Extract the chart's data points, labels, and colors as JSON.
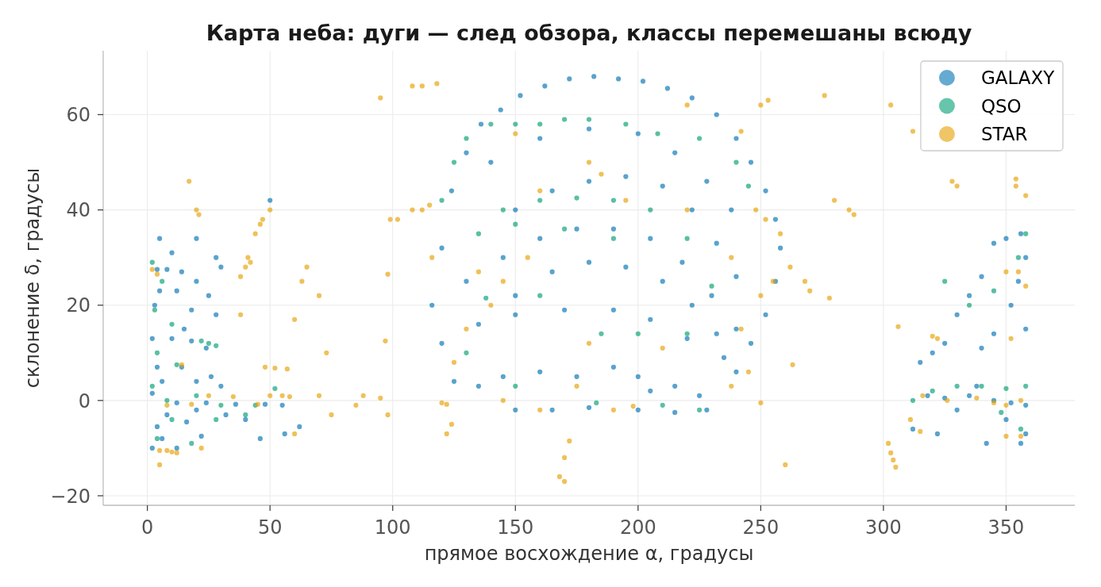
{
  "chart_data": {
    "type": "scatter",
    "title": "Карта неба: дуги — след обзора, классы перемешаны всюду",
    "xlabel": "прямое восхождение α, градусы",
    "ylabel": "склонение δ, градусы",
    "xlim": [
      -18,
      378
    ],
    "ylim": [
      -22,
      73.4
    ],
    "xticks": [
      0,
      50,
      100,
      150,
      200,
      250,
      300,
      350
    ],
    "yticks": [
      {
        "value": -20,
        "label": "−20"
      },
      0,
      20,
      40,
      60
    ],
    "grid": true,
    "legend": "top right",
    "marker": "circle",
    "series": [
      {
        "name": "GALAXY",
        "color": "#0072b2",
        "x": [
          4,
          8,
          14,
          20,
          5,
          12,
          25,
          3,
          18,
          28,
          2,
          10,
          18,
          24,
          4,
          14,
          6,
          20,
          30,
          2,
          12,
          24,
          36,
          48,
          55,
          8,
          20,
          32,
          4,
          16,
          40,
          6,
          22,
          46,
          2,
          12,
          10,
          20,
          28,
          50,
          56,
          62,
          5,
          30,
          15,
          26,
          116,
          120,
          124,
          130,
          136,
          144,
          152,
          162,
          172,
          182,
          192,
          202,
          212,
          222,
          232,
          240,
          246,
          252,
          256,
          258,
          256,
          252,
          246,
          240,
          150,
          165,
          180,
          195,
          210,
          222,
          232,
          240,
          130,
          145,
          160,
          175,
          190,
          205,
          218,
          230,
          240,
          150,
          165,
          180,
          195,
          210,
          222,
          232,
          120,
          135,
          150,
          170,
          190,
          205,
          220,
          235,
          140,
          160,
          180,
          200,
          215,
          228,
          238,
          125,
          135,
          145,
          160,
          175,
          190,
          200,
          205,
          215,
          225,
          150,
          165,
          180,
          200,
          215,
          228,
          315,
          320,
          325,
          330,
          335,
          340,
          345,
          350,
          356,
          358,
          355,
          352,
          358,
          345,
          340,
          318,
          325,
          335,
          345,
          352,
          358,
          330,
          350,
          358,
          312,
          322,
          342,
          356,
          338
        ],
        "values": [
          27.5,
          27.5,
          27,
          25,
          23,
          23,
          22,
          20,
          19,
          18,
          13,
          13,
          12.5,
          11,
          7,
          7,
          4,
          4,
          3,
          1.5,
          -0.5,
          -0.5,
          -0.8,
          -0.8,
          -1,
          -3,
          -2,
          -3,
          -5.5,
          -4.5,
          -4,
          -8,
          -7.5,
          -8,
          -10,
          -10,
          31,
          34,
          30,
          42,
          -7,
          -5.5,
          34,
          28,
          15,
          5,
          20,
          32,
          44,
          52,
          58,
          61,
          64,
          66,
          67.5,
          68,
          67.5,
          67,
          65.5,
          63.5,
          60,
          55,
          50,
          44,
          38,
          32,
          25,
          18,
          12,
          6,
          40,
          44,
          46,
          47,
          45,
          40,
          33,
          26,
          25,
          30,
          34,
          36,
          36,
          34,
          29,
          22,
          15,
          22,
          27,
          29,
          28,
          25,
          20,
          14,
          12,
          16,
          18,
          19,
          19,
          17,
          13,
          9,
          50,
          55,
          57,
          56,
          52,
          46,
          40,
          4,
          3,
          5,
          6,
          5,
          7,
          5,
          2,
          3,
          1,
          -2,
          -2,
          -1.5,
          -2,
          -2.5,
          -2,
          8,
          10,
          12,
          18,
          22,
          26,
          33,
          34,
          35,
          30,
          25,
          20,
          15,
          14,
          11,
          1,
          0.5,
          1,
          0,
          -0.5,
          -1,
          -2,
          -4,
          -7,
          -6,
          -7,
          -9,
          -9,
          3
        ]
      },
      {
        "name": "QSO",
        "color": "#009e73",
        "x": [
          2,
          6,
          3,
          10,
          25,
          28,
          22,
          4,
          12,
          2,
          8,
          20,
          30,
          44,
          10,
          28,
          4,
          18,
          40,
          52,
          120,
          125,
          130,
          140,
          150,
          160,
          170,
          180,
          195,
          208,
          225,
          240,
          145,
          160,
          175,
          190,
          205,
          220,
          135,
          150,
          170,
          190,
          230,
          138,
          160,
          185,
          200,
          220,
          150,
          183,
          210,
          225,
          130,
          245,
          320,
          330,
          340,
          350,
          358,
          335,
          345,
          355,
          358,
          325,
          312,
          348,
          356
        ],
        "values": [
          29,
          25,
          19,
          16,
          12,
          11.5,
          12.5,
          10,
          7.5,
          3,
          0,
          1,
          -1,
          -1,
          -4,
          -4,
          -8,
          -9,
          -3,
          2.5,
          42,
          50,
          55,
          58,
          58,
          58,
          59,
          59,
          58,
          56,
          55,
          50,
          40,
          42,
          42.5,
          42,
          40,
          34,
          35,
          37,
          36,
          34,
          24,
          21.5,
          22,
          14,
          14,
          14,
          3,
          -0.5,
          -1,
          -2,
          10,
          45,
          2,
          3,
          3,
          2.5,
          3,
          20,
          23,
          30,
          35,
          25,
          0,
          -2.5,
          -6
        ]
      },
      {
        "name": "STAR",
        "color": "#e69f00",
        "x": [
          2,
          4,
          5,
          8,
          10,
          12,
          5,
          22,
          18,
          25,
          35,
          50,
          55,
          58,
          45,
          8,
          14,
          17,
          20,
          21,
          38,
          40,
          41,
          42,
          44,
          46,
          47,
          50,
          38,
          48,
          52,
          57,
          60,
          65,
          63,
          60,
          70,
          73,
          75,
          70,
          85,
          88,
          95,
          98,
          95,
          108,
          112,
          118,
          98,
          99,
          102,
          97,
          108,
          112,
          115,
          116,
          120,
          122,
          124,
          122,
          125,
          130,
          140,
          145,
          155,
          135,
          145,
          170,
          168,
          170,
          172,
          160,
          190,
          198,
          175,
          180,
          210,
          185,
          180,
          195,
          220,
          242,
          250,
          253,
          248,
          252,
          258,
          255,
          250,
          238,
          242,
          245,
          238,
          220,
          160,
          150,
          262,
          263,
          268,
          270,
          276,
          280,
          286,
          288,
          278,
          260,
          250,
          302,
          304,
          305,
          303,
          306,
          303,
          312,
          328,
          330,
          320,
          322,
          311,
          315,
          350,
          356,
          354,
          354,
          358,
          355,
          350,
          358,
          352,
          356,
          350,
          345,
          338,
          326,
          316
        ],
        "values": [
          27.5,
          26.5,
          -10.5,
          -10.5,
          -10.8,
          -11,
          -13.5,
          -10,
          -0.8,
          1,
          0.8,
          1,
          1,
          0.8,
          -0.8,
          -1,
          7.5,
          46,
          40,
          39,
          26,
          28,
          30,
          29,
          35,
          37,
          38,
          40,
          18,
          7,
          6.8,
          6.6,
          17,
          28,
          25,
          -7,
          22,
          10,
          -3,
          1,
          -1,
          1,
          0.5,
          -3,
          63.5,
          66,
          66,
          66.5,
          26.5,
          38,
          38,
          12.5,
          40,
          40,
          41,
          30,
          -0.5,
          -0.8,
          -5,
          -7,
          8,
          15,
          20,
          25,
          30,
          27,
          0,
          -12,
          -16,
          -17,
          -8.5,
          -2,
          -2,
          -1.2,
          3,
          12,
          11,
          47.5,
          50,
          42,
          62,
          56.5,
          62,
          63,
          40,
          38,
          35,
          25,
          22,
          30,
          15,
          6,
          3,
          40,
          44,
          56,
          28,
          7.5,
          25,
          23,
          64,
          42,
          40,
          39,
          21.5,
          -13.5,
          -0.5,
          -9,
          -12.5,
          -14,
          -11,
          15.5,
          62,
          56.5,
          46,
          45,
          13.5,
          13,
          -4,
          -6.5,
          -7.5,
          -7.5,
          46.5,
          45,
          43,
          27,
          27,
          24,
          13,
          0,
          -1,
          -0.5,
          0.5,
          0,
          1
        ]
      }
    ]
  }
}
